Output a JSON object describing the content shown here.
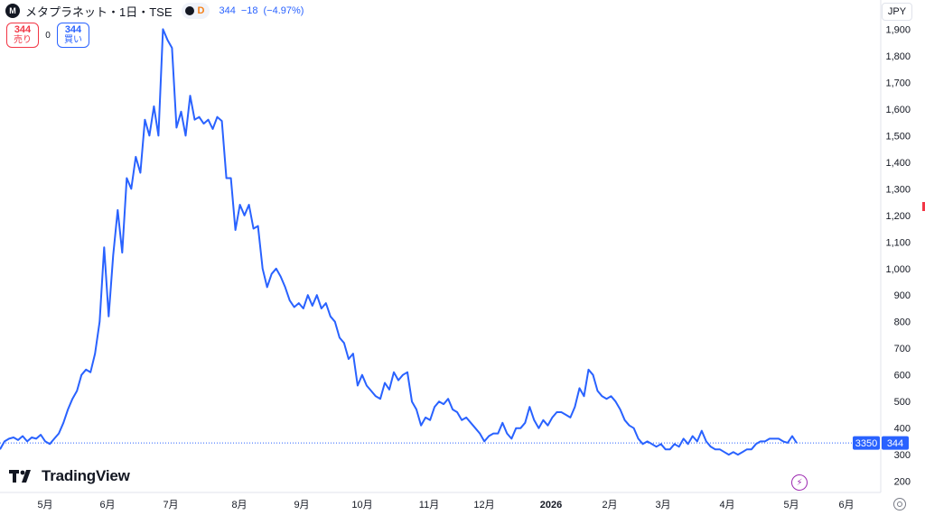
{
  "header": {
    "logo_letter": "M",
    "symbol": "メタプラネット・1日・TSE",
    "interval_badge": "D",
    "last": "344",
    "change": "−18",
    "change_pct": "(−4.97%)"
  },
  "trade": {
    "sell_price": "344",
    "sell_label": "売り",
    "spread": "0",
    "buy_price": "344",
    "buy_label": "買い"
  },
  "currency": "JPY",
  "brand": "TradingView",
  "price_marker": {
    "countdown": "3350",
    "price": "344"
  },
  "chart_data": {
    "type": "line",
    "title": "",
    "xlabel": "",
    "ylabel": "",
    "currency": "JPY",
    "ylim": [
      158,
      2010
    ],
    "x_ticks": [
      "5月",
      "6月",
      "7月",
      "8月",
      "9月",
      "10月",
      "11月",
      "12月",
      "2026",
      "2月",
      "3月",
      "4月",
      "5月",
      "6月"
    ],
    "y_ticks": [
      "200",
      "300",
      "400",
      "500",
      "600",
      "700",
      "800",
      "900",
      "1,000",
      "1,100",
      "1,200",
      "1,300",
      "1,400",
      "1,500",
      "1,600",
      "1,700",
      "1,800",
      "1,900"
    ],
    "last_value": 344,
    "line_color": "#2962ff",
    "series": [
      {
        "values": [
          320,
          350,
          360,
          365,
          355,
          370,
          350,
          365,
          360,
          375,
          350,
          340,
          360,
          380,
          420,
          470,
          510,
          540,
          600,
          620,
          610,
          680,
          800,
          1080,
          820,
          1050,
          1220,
          1060,
          1340,
          1300,
          1420,
          1360,
          1560,
          1500,
          1610,
          1500,
          1900,
          1860,
          1830,
          1530,
          1590,
          1500,
          1650,
          1560,
          1570,
          1545,
          1560,
          1525,
          1570,
          1555,
          1340,
          1340,
          1145,
          1240,
          1200,
          1240,
          1150,
          1160,
          1000,
          930,
          980,
          1000,
          970,
          930,
          880,
          855,
          870,
          850,
          900,
          860,
          900,
          850,
          870,
          820,
          800,
          740,
          720,
          660,
          680,
          560,
          600,
          560,
          540,
          520,
          510,
          570,
          545,
          610,
          580,
          600,
          610,
          500,
          470,
          410,
          440,
          430,
          480,
          500,
          490,
          510,
          470,
          460,
          430,
          440,
          420,
          400,
          380,
          350,
          370,
          380,
          380,
          420,
          380,
          360,
          400,
          400,
          420,
          480,
          430,
          400,
          430,
          410,
          440,
          460,
          460,
          450,
          440,
          480,
          550,
          520,
          620,
          600,
          540,
          520,
          510,
          520,
          500,
          470,
          430,
          410,
          400,
          360,
          340,
          350,
          340,
          330,
          340,
          320,
          320,
          340,
          330,
          360,
          340,
          370,
          350,
          390,
          350,
          330,
          320,
          320,
          310,
          300,
          310,
          300,
          310,
          320,
          320,
          340,
          350,
          350,
          360,
          360,
          360,
          350,
          345,
          370,
          344
        ]
      }
    ]
  }
}
